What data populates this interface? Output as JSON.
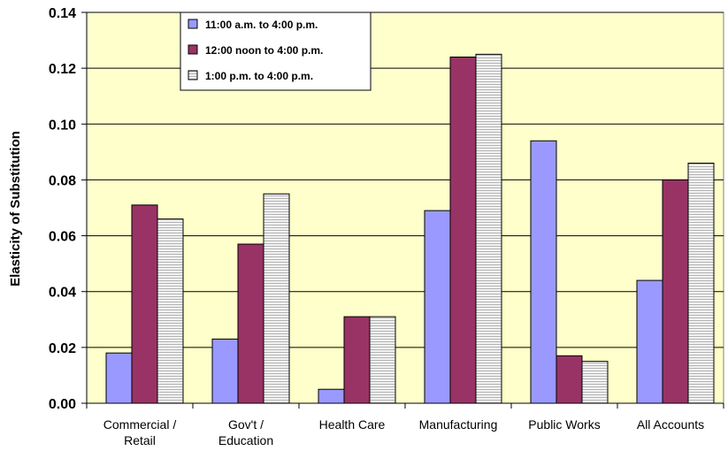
{
  "chart_data": {
    "type": "bar",
    "title": "",
    "xlabel": "",
    "ylabel": "Elasticity of Substitution",
    "ylim": [
      0,
      0.14
    ],
    "yticks": [
      "0.00",
      "0.02",
      "0.04",
      "0.06",
      "0.08",
      "0.10",
      "0.12",
      "0.14"
    ],
    "grid": true,
    "legend_position": "top-left",
    "categories": [
      [
        "Commercial /",
        "Retail"
      ],
      [
        "Gov't /",
        "Education"
      ],
      [
        "Health Care"
      ],
      [
        "Manufacturing"
      ],
      [
        "Public Works"
      ],
      [
        "All Accounts"
      ]
    ],
    "series": [
      {
        "name": "11:00 a.m. to 4:00 p.m.",
        "color": "#9999ff",
        "pattern": "solid",
        "values": [
          0.018,
          0.023,
          0.005,
          0.069,
          0.094,
          0.044
        ]
      },
      {
        "name": "12:00 noon to 4:00 p.m.",
        "color": "#993366",
        "pattern": "solid",
        "values": [
          0.071,
          0.057,
          0.031,
          0.124,
          0.017,
          0.08
        ]
      },
      {
        "name": "1:00 p.m. to 4:00 p.m.",
        "color": "#e6e6e6",
        "pattern": "horizontal-lines",
        "values": [
          0.066,
          0.075,
          0.031,
          0.125,
          0.015,
          0.086
        ]
      }
    ],
    "colors": {
      "plot_background": "#ffffcc",
      "gridline": "#000000"
    }
  }
}
